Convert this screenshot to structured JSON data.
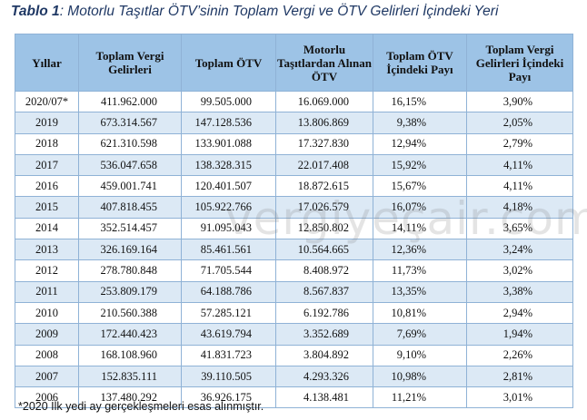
{
  "caption": {
    "label": "Tablo 1",
    "text": ": Motorlu Taşıtlar ÖTV’sinin Toplam Vergi ve ÖTV Gelirleri İçindeki Yeri"
  },
  "table": {
    "headers": [
      "Yıllar",
      "Toplam Vergi Gelirleri",
      "Toplam ÖTV",
      "Motorlu Taşıtlardan Alınan ÖTV",
      "Toplam ÖTV İçindeki Payı",
      "Toplam Vergi Gelirleri İçindeki Payı"
    ],
    "rows": [
      [
        "2020/07*",
        "411.962.000",
        "99.505.000",
        "16.069.000",
        "16,15%",
        "3,90%"
      ],
      [
        "2019",
        "673.314.567",
        "147.128.536",
        "13.806.869",
        "9,38%",
        "2,05%"
      ],
      [
        "2018",
        "621.310.598",
        "133.901.088",
        "17.327.830",
        "12,94%",
        "2,79%"
      ],
      [
        "2017",
        "536.047.658",
        "138.328.315",
        "22.017.408",
        "15,92%",
        "4,11%"
      ],
      [
        "2016",
        "459.001.741",
        "120.401.507",
        "18.872.615",
        "15,67%",
        "4,11%"
      ],
      [
        "2015",
        "407.818.455",
        "105.922.766",
        "17.026.579",
        "16,07%",
        "4,18%"
      ],
      [
        "2014",
        "352.514.457",
        "91.095.043",
        "12.850.802",
        "14,11%",
        "3,65%"
      ],
      [
        "2013",
        "326.169.164",
        "85.461.561",
        "10.564.665",
        "12,36%",
        "3,24%"
      ],
      [
        "2012",
        "278.780.848",
        "71.705.544",
        "8.408.972",
        "11,73%",
        "3,02%"
      ],
      [
        "2011",
        "253.809.179",
        "64.188.786",
        "8.567.837",
        "13,35%",
        "3,38%"
      ],
      [
        "2010",
        "210.560.388",
        "57.285.121",
        "6.192.786",
        "10,81%",
        "2,94%"
      ],
      [
        "2009",
        "172.440.423",
        "43.619.794",
        "3.352.689",
        "7,69%",
        "1,94%"
      ],
      [
        "2008",
        "168.108.960",
        "41.831.723",
        "3.804.892",
        "9,10%",
        "2,26%"
      ],
      [
        "2007",
        "152.835.111",
        "39.110.505",
        "4.293.326",
        "10,98%",
        "2,81%"
      ],
      [
        "2006",
        "137.480.292",
        "36.926.175",
        "4.138.481",
        "11,21%",
        "3,01%"
      ]
    ]
  },
  "watermark": "vergiyeçair.com",
  "footnote": "*2020 İlk yedi ay gerçekleşmeleri esas alınmıştır.",
  "colors": {
    "header_bg": "#9dc3e6",
    "row_alt_bg": "#dce9f5",
    "border": "#8fb2d6",
    "caption_text": "#1f3864"
  }
}
